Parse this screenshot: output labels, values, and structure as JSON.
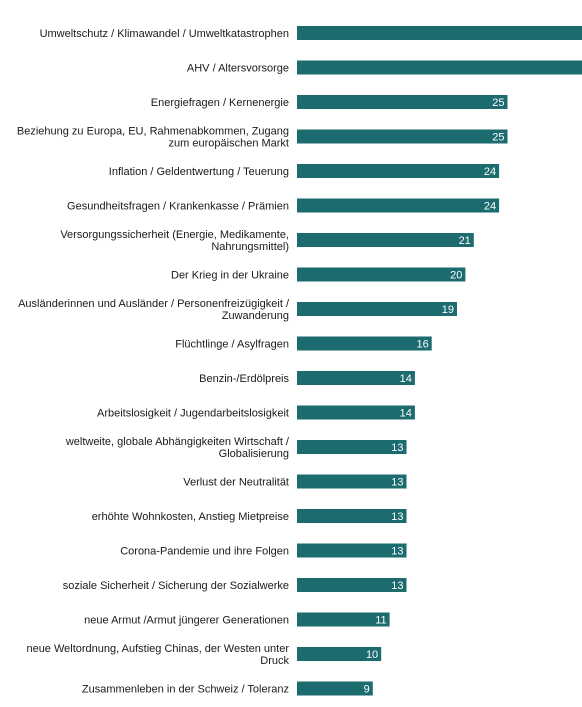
{
  "chart_data": {
    "type": "bar",
    "orientation": "horizontal",
    "bar_color": "#1c6b6e",
    "value_label_color": "#ffffff",
    "xlim": [
      0,
      42
    ],
    "grid": false,
    "title": "",
    "xlabel": "",
    "ylabel": "",
    "categories": [
      [
        "Umweltschutz / Klimawandel / Umweltkatastrophen"
      ],
      [
        "AHV / Altersvorsorge"
      ],
      [
        "Energiefragen / Kernenergie"
      ],
      [
        "Beziehung zu Europa, EU, Rahmenabkommen, Zugang",
        "zum europäischen Markt"
      ],
      [
        "Inflation / Geldentwertung / Teuerung"
      ],
      [
        "Gesundheitsfragen / Krankenkasse / Prämien"
      ],
      [
        "Versorgungssicherheit (Energie, Medikamente,",
        "Nahrungsmittel)"
      ],
      [
        "Der Krieg in der Ukraine"
      ],
      [
        "Ausländerinnen und Ausländer / Personenfreizügigkeit /",
        "Zuwanderung"
      ],
      [
        "Flüchtlinge / Asylfragen"
      ],
      [
        "Benzin-/Erdölpreis"
      ],
      [
        "Arbeitslosigkeit / Jugendarbeitslosigkeit"
      ],
      [
        "weltweite, globale Abhängigkeiten Wirtschaft /",
        "Globalisierung"
      ],
      [
        "Verlust der Neutralität"
      ],
      [
        "erhöhte Wohnkosten, Anstieg Mietpreise"
      ],
      [
        "Corona-Pandemie und ihre Folgen"
      ],
      [
        "soziale Sicherheit / Sicherung der Sozialwerke"
      ],
      [
        "neue Armut /Armut jüngerer Generationen"
      ],
      [
        "neue Weltordnung, Aufstieg Chinas, der Westen unter",
        "Druck"
      ],
      [
        "Zusammenleben in der Schweiz / Toleranz"
      ]
    ],
    "values": [
      39,
      37,
      25,
      25,
      24,
      24,
      21,
      20,
      19,
      16,
      14,
      14,
      13,
      13,
      13,
      13,
      13,
      11,
      10,
      9
    ]
  }
}
